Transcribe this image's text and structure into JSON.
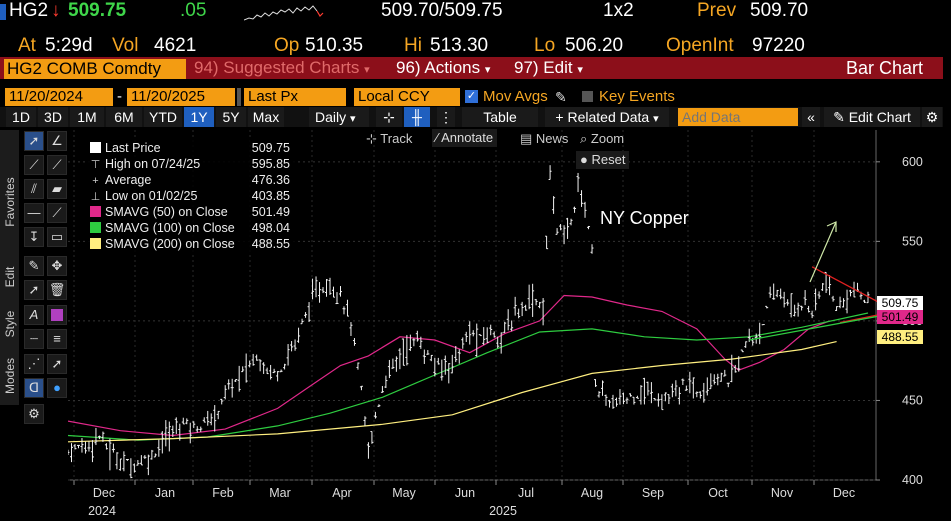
{
  "quote": {
    "ticker": "HG2",
    "arrow": "↓",
    "last": "509.75",
    "change": ".05",
    "bid_ask": "509.70/509.75",
    "size": "1x2",
    "prev_label": "Prev",
    "prev_value": "509.70",
    "at_label": "At",
    "at_time": "5:29d",
    "vol_label": "Vol",
    "vol_value": "4621",
    "op_label": "Op",
    "op_value": "510.35",
    "hi_label": "Hi",
    "hi_value": "513.30",
    "lo_label": "Lo",
    "lo_value": "506.20",
    "oi_label": "OpenInt",
    "oi_value": "97220"
  },
  "menu": {
    "security": "HG2 COMB Comdty",
    "suggested": "94) Suggested Charts",
    "actions": "96) Actions",
    "edit": "97) Edit",
    "title": "Bar Chart"
  },
  "controls": {
    "start_date": "11/20/2024",
    "end_date": "11/20/2025",
    "field": "Last Px",
    "currency": "Local CCY",
    "mov_avgs": "Mov Avgs",
    "key_events": "Key Events",
    "periods": [
      "1D",
      "3D",
      "1M",
      "6M",
      "YTD",
      "1Y",
      "5Y",
      "Max"
    ],
    "selected_period": "1Y",
    "frequency": "Daily",
    "table": "Table",
    "related": "Related Data",
    "add_data_placeholder": "Add Data",
    "edit_chart": "Edit Chart"
  },
  "chart_tools": {
    "track": "Track",
    "annotate": "Annotate",
    "news": "News",
    "zoom": "Zoom",
    "reset": "Reset"
  },
  "sidebar": {
    "favorites": "Favorites",
    "edit": "Edit",
    "style": "Style",
    "modes": "Modes"
  },
  "legend": [
    {
      "label": "Last Price",
      "value": "509.75",
      "color": "#ffffff",
      "kind": "box"
    },
    {
      "label": "High on 07/24/25",
      "value": "595.85",
      "color": "#cccccc",
      "kind": "high"
    },
    {
      "label": "Average",
      "value": "476.36",
      "color": "#cccccc",
      "kind": "avg"
    },
    {
      "label": "Low on 01/02/25",
      "value": "403.85",
      "color": "#cccccc",
      "kind": "low"
    },
    {
      "label": "SMAVG (50)  on Close",
      "value": "501.49",
      "color": "#e0288a",
      "kind": "box"
    },
    {
      "label": "SMAVG (100)  on Close",
      "value": "498.04",
      "color": "#2ecc40",
      "kind": "box"
    },
    {
      "label": "SMAVG (200)  on Close",
      "value": "488.55",
      "color": "#ffef80",
      "kind": "box"
    }
  ],
  "annotation_text": "NY Copper",
  "chart_data": {
    "type": "bar",
    "title": "NY Copper",
    "ylim": [
      400,
      620
    ],
    "yticks": [
      "400",
      "450",
      "500",
      "550",
      "600"
    ],
    "xticks": [
      "Dec",
      "Jan",
      "Feb",
      "Mar",
      "Apr",
      "May",
      "Jun",
      "Jul",
      "Aug",
      "Sep",
      "Oct",
      "Nov",
      "Dec"
    ],
    "xyears": [
      "2024",
      "2025"
    ],
    "tags": [
      {
        "value": "509.75",
        "bg": "#ffffff"
      },
      {
        "value": "501.49",
        "bg": "#e0288a"
      },
      {
        "value": "488.55",
        "bg": "#ffef80"
      }
    ],
    "price_path": [
      [
        0,
        418
      ],
      [
        3,
        420
      ],
      [
        6,
        423
      ],
      [
        9,
        428
      ],
      [
        12,
        418
      ],
      [
        15,
        412
      ],
      [
        18,
        410
      ],
      [
        21,
        412
      ],
      [
        24,
        415
      ],
      [
        27,
        425
      ],
      [
        30,
        430
      ],
      [
        33,
        437
      ],
      [
        36,
        433
      ],
      [
        39,
        435
      ],
      [
        42,
        440
      ],
      [
        45,
        455
      ],
      [
        48,
        462
      ],
      [
        51,
        470
      ],
      [
        54,
        478
      ],
      [
        57,
        470
      ],
      [
        60,
        468
      ],
      [
        63,
        478
      ],
      [
        66,
        492
      ],
      [
        69,
        510
      ],
      [
        72,
        520
      ],
      [
        75,
        522
      ],
      [
        78,
        518
      ],
      [
        81,
        498
      ],
      [
        84,
        455
      ],
      [
        86,
        418
      ],
      [
        88,
        440
      ],
      [
        91,
        465
      ],
      [
        94,
        475
      ],
      [
        97,
        484
      ],
      [
        100,
        488
      ],
      [
        103,
        478
      ],
      [
        106,
        470
      ],
      [
        109,
        473
      ],
      [
        112,
        480
      ],
      [
        115,
        492
      ],
      [
        118,
        488
      ],
      [
        121,
        494
      ],
      [
        124,
        490
      ],
      [
        127,
        500
      ],
      [
        130,
        510
      ],
      [
        133,
        515
      ],
      [
        136,
        508
      ],
      [
        138,
        590
      ],
      [
        140,
        560
      ],
      [
        142,
        552
      ],
      [
        144,
        562
      ],
      [
        146,
        585
      ],
      [
        148,
        572
      ],
      [
        150,
        545
      ],
      [
        151,
        462
      ],
      [
        153,
        452
      ],
      [
        156,
        448
      ],
      [
        159,
        450
      ],
      [
        162,
        454
      ],
      [
        165,
        456
      ],
      [
        168,
        453
      ],
      [
        171,
        451
      ],
      [
        174,
        453
      ],
      [
        177,
        461
      ],
      [
        180,
        455
      ],
      [
        183,
        463
      ],
      [
        186,
        466
      ],
      [
        189,
        462
      ],
      [
        191,
        470
      ],
      [
        193,
        480
      ],
      [
        195,
        488
      ],
      [
        197,
        490
      ],
      [
        199,
        500
      ],
      [
        201,
        512
      ],
      [
        203,
        518
      ],
      [
        205,
        515
      ],
      [
        207,
        505
      ],
      [
        209,
        510
      ],
      [
        211,
        512
      ],
      [
        213,
        505
      ],
      [
        215,
        517
      ],
      [
        217,
        524
      ],
      [
        219,
        512
      ],
      [
        221,
        507
      ],
      [
        223,
        516
      ],
      [
        225,
        520
      ],
      [
        227,
        515
      ],
      [
        229,
        510
      ]
    ],
    "series": [
      {
        "name": "SMAVG (50)",
        "color": "#e0288a",
        "values": [
          [
            0,
            437
          ],
          [
            15,
            431
          ],
          [
            30,
            428
          ],
          [
            45,
            432
          ],
          [
            60,
            445
          ],
          [
            70,
            460
          ],
          [
            78,
            472
          ],
          [
            86,
            478
          ],
          [
            95,
            490
          ],
          [
            105,
            488
          ],
          [
            115,
            480
          ],
          [
            125,
            492
          ],
          [
            135,
            500
          ],
          [
            142,
            516
          ],
          [
            150,
            515
          ],
          [
            160,
            510
          ],
          [
            170,
            506
          ],
          [
            180,
            495
          ],
          [
            188,
            476
          ],
          [
            192,
            469
          ],
          [
            198,
            474
          ],
          [
            205,
            482
          ],
          [
            212,
            495
          ],
          [
            218,
            500
          ]
        ]
      },
      {
        "name": "SMAVG (100)",
        "color": "#2ecc40",
        "values": [
          [
            0,
            428
          ],
          [
            20,
            425
          ],
          [
            40,
            427
          ],
          [
            60,
            434
          ],
          [
            75,
            442
          ],
          [
            90,
            452
          ],
          [
            105,
            466
          ],
          [
            120,
            480
          ],
          [
            135,
            493
          ],
          [
            150,
            495
          ],
          [
            165,
            490
          ],
          [
            180,
            488
          ],
          [
            195,
            490
          ],
          [
            210,
            496
          ],
          [
            229,
            505
          ]
        ]
      },
      {
        "name": "SMAVG (200)",
        "color": "#ffef80",
        "values": [
          [
            0,
            424
          ],
          [
            30,
            426
          ],
          [
            60,
            429
          ],
          [
            90,
            435
          ],
          [
            110,
            441
          ],
          [
            130,
            455
          ],
          [
            150,
            467
          ],
          [
            170,
            472
          ],
          [
            190,
            476
          ],
          [
            210,
            482
          ],
          [
            220,
            487
          ]
        ]
      }
    ],
    "trendlines": [
      {
        "color": "#e02020",
        "from": [
          213,
          534
        ],
        "to": [
          237,
          506
        ]
      },
      {
        "color": "#e02020",
        "from": [
          221,
          499
        ],
        "to": [
          237,
          506
        ]
      },
      {
        "color": "#2ecc40",
        "from": [
          195,
          488
        ],
        "to": [
          237,
          505
        ]
      }
    ]
  }
}
